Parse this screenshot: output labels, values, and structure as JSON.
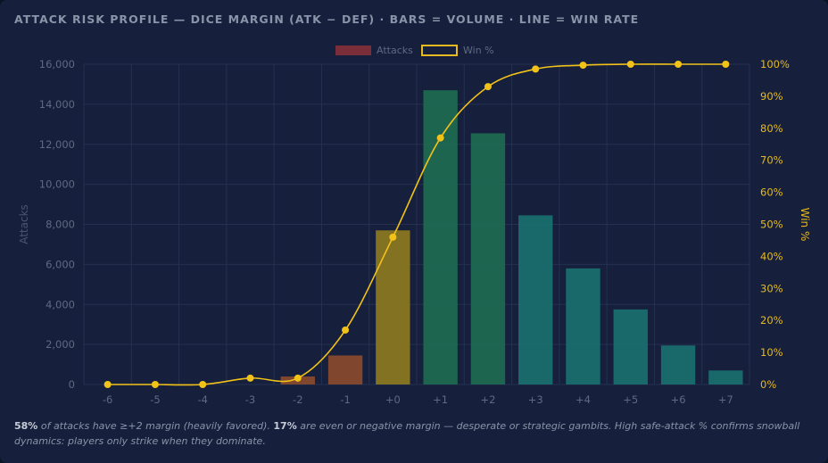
{
  "header": {
    "title": "ATTACK RISK PROFILE — DICE MARGIN (ATK − DEF) · BARS = VOLUME · LINE = WIN RATE"
  },
  "legend": {
    "bars_label": "Attacks",
    "line_label": "Win %"
  },
  "colors": {
    "negative_bar": "#8a4a2e",
    "even_bar": "#8c7a20",
    "positive_bar": "#1f6b52",
    "high_margin_bar": "#1a7070",
    "line": "#f2c218",
    "grid": "#243150"
  },
  "chart_data": {
    "type": "bar",
    "categories": [
      "-6",
      "-5",
      "-4",
      "-3",
      "-2",
      "-1",
      "+0",
      "+1",
      "+2",
      "+3",
      "+4",
      "+5",
      "+6",
      "+7"
    ],
    "series": [
      {
        "name": "Attacks",
        "type": "bar",
        "axis": "left",
        "values": [
          0,
          0,
          0,
          0,
          400,
          1450,
          7700,
          14700,
          12550,
          8450,
          5800,
          3750,
          1950,
          700
        ]
      },
      {
        "name": "Win %",
        "type": "line",
        "axis": "right",
        "values": [
          0,
          0,
          0,
          2,
          2,
          17,
          46,
          77,
          93,
          98.5,
          99.7,
          100,
          100,
          100
        ]
      }
    ],
    "ylabel": "Attacks",
    "y2label": "Win %",
    "ylim": [
      0,
      16000
    ],
    "y2lim": [
      0,
      100
    ],
    "yticks": [
      "0",
      "2,000",
      "4,000",
      "6,000",
      "8,000",
      "10,000",
      "12,000",
      "14,000",
      "16,000"
    ],
    "y2ticks": [
      "0%",
      "10%",
      "20%",
      "30%",
      "40%",
      "50%",
      "60%",
      "70%",
      "80%",
      "90%",
      "100%"
    ],
    "grid": true,
    "legend_position": "top-center"
  },
  "footnote": {
    "p1": "58%",
    "t1": " of attacks have ≥+2 margin (heavily favored). ",
    "p2": "17%",
    "t2": " are even or negative margin — desperate or strategic gambits. High safe-attack % confirms snowball dynamics: players only strike when they dominate."
  }
}
